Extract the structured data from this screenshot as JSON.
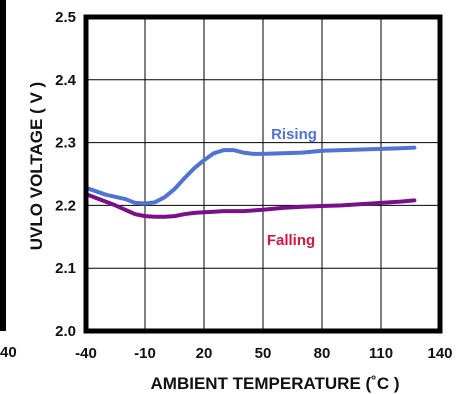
{
  "chart_data": {
    "type": "line",
    "xlabel": "AMBIENT TEMPERATURE (˚C )",
    "ylabel": "UVLO VOLTAGE ( V )",
    "xlim": [
      -40,
      140
    ],
    "ylim": [
      2.0,
      2.5
    ],
    "x_ticks": [
      "-40",
      "-10",
      "20",
      "50",
      "80",
      "110",
      "140"
    ],
    "y_ticks": [
      "2.0",
      "2.1",
      "2.2",
      "2.3",
      "2.4",
      "2.5"
    ],
    "grid": true,
    "series": [
      {
        "name": "Rising",
        "color": "#4f74d6",
        "points": [
          [
            -40,
            2.228
          ],
          [
            -30,
            2.217
          ],
          [
            -20,
            2.21
          ],
          [
            -15,
            2.204
          ],
          [
            -10,
            2.203
          ],
          [
            -5,
            2.205
          ],
          [
            0,
            2.213
          ],
          [
            5,
            2.226
          ],
          [
            10,
            2.243
          ],
          [
            15,
            2.259
          ],
          [
            20,
            2.272
          ],
          [
            25,
            2.283
          ],
          [
            30,
            2.288
          ],
          [
            35,
            2.288
          ],
          [
            40,
            2.284
          ],
          [
            45,
            2.282
          ],
          [
            50,
            2.282
          ],
          [
            60,
            2.283
          ],
          [
            70,
            2.284
          ],
          [
            80,
            2.287
          ],
          [
            90,
            2.288
          ],
          [
            100,
            2.289
          ],
          [
            110,
            2.29
          ],
          [
            120,
            2.291
          ],
          [
            127,
            2.292
          ]
        ]
      },
      {
        "name": "Falling",
        "color": "#d6163f",
        "line_color": "#7a0f8c",
        "points": [
          [
            -40,
            2.218
          ],
          [
            -35,
            2.212
          ],
          [
            -30,
            2.206
          ],
          [
            -25,
            2.2
          ],
          [
            -20,
            2.193
          ],
          [
            -15,
            2.186
          ],
          [
            -10,
            2.183
          ],
          [
            -5,
            2.182
          ],
          [
            0,
            2.182
          ],
          [
            5,
            2.183
          ],
          [
            10,
            2.186
          ],
          [
            15,
            2.188
          ],
          [
            20,
            2.189
          ],
          [
            25,
            2.19
          ],
          [
            30,
            2.191
          ],
          [
            40,
            2.191
          ],
          [
            50,
            2.193
          ],
          [
            60,
            2.196
          ],
          [
            70,
            2.198
          ],
          [
            80,
            2.199
          ],
          [
            90,
            2.2
          ],
          [
            100,
            2.202
          ],
          [
            110,
            2.204
          ],
          [
            120,
            2.206
          ],
          [
            127,
            2.208
          ]
        ]
      }
    ]
  },
  "neighbor_fragments": {
    "left_tick": "40"
  }
}
